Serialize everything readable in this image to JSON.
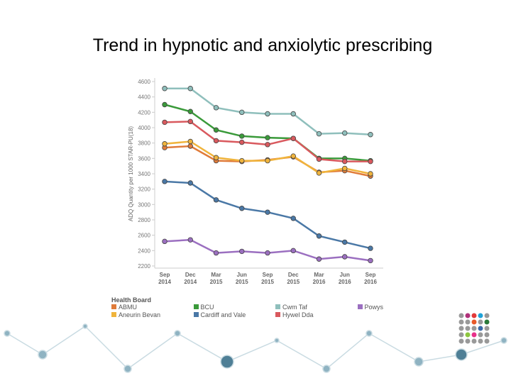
{
  "chart_data": {
    "type": "line",
    "title": "Trend in hypnotic and anxiolytic prescribing",
    "y_label": "ADQ Quantity per 1000 STAR-PU(18)",
    "legend_title": "Health Board",
    "categories": [
      "Sep 2014",
      "Dec 2014",
      "Mar 2015",
      "Jun 2015",
      "Sep 2015",
      "Dec 2015",
      "Mar 2016",
      "Jun 2016",
      "Sep 2016"
    ],
    "ylim": [
      2200,
      4600
    ],
    "yticks": [
      2200,
      2400,
      2600,
      2800,
      3000,
      3200,
      3400,
      3600,
      3800,
      4000,
      4200,
      4400,
      4600
    ],
    "grid": false,
    "series": [
      {
        "name": "ABMU",
        "color": "#e07b39",
        "values": [
          3740,
          3760,
          3570,
          3560,
          3580,
          3620,
          3420,
          3440,
          3370
        ]
      },
      {
        "name": "Aneurin Bevan",
        "color": "#f0b43c",
        "values": [
          3790,
          3820,
          3610,
          3570,
          3570,
          3630,
          3410,
          3470,
          3400
        ]
      },
      {
        "name": "BCU",
        "color": "#3a9a3a",
        "values": [
          4300,
          4210,
          3970,
          3890,
          3870,
          3860,
          3600,
          3600,
          3570
        ]
      },
      {
        "name": "Cardiff and Vale",
        "color": "#4a78a6",
        "values": [
          3300,
          3280,
          3060,
          2950,
          2900,
          2820,
          2590,
          2510,
          2430
        ]
      },
      {
        "name": "Cwm Taf",
        "color": "#8fbfbc",
        "values": [
          4510,
          4510,
          4260,
          4200,
          4180,
          4180,
          3920,
          3930,
          3910
        ]
      },
      {
        "name": "Hywel Dda",
        "color": "#d9595e",
        "values": [
          4070,
          4080,
          3830,
          3810,
          3780,
          3860,
          3590,
          3560,
          3560
        ]
      },
      {
        "name": "Powys",
        "color": "#9b6fc0",
        "values": [
          2520,
          2540,
          2370,
          2390,
          2370,
          2400,
          2290,
          2320,
          2270
        ]
      }
    ]
  }
}
